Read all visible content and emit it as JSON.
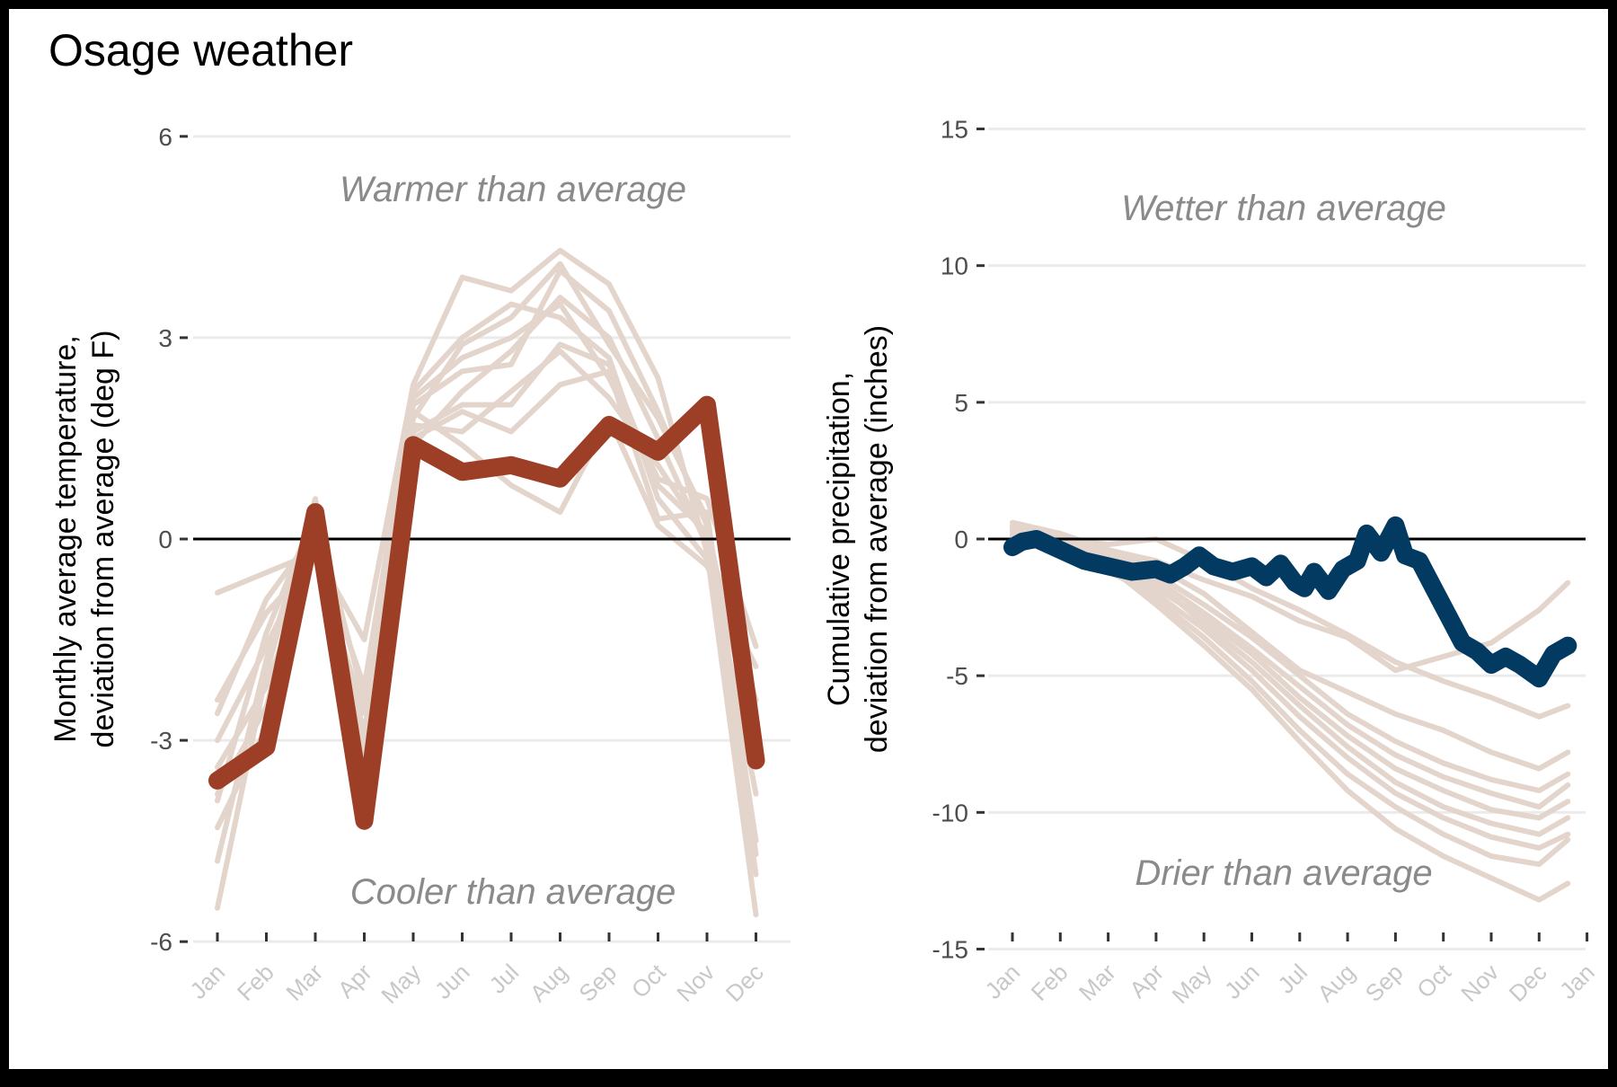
{
  "title": "Osage weather",
  "chart_data": [
    {
      "type": "line",
      "name": "temperature",
      "ylabel_lines": [
        "Monthly average temperature,",
        "deviation from average (deg F)"
      ],
      "ylim": [
        -6.6,
        6.6
      ],
      "yticks": [
        6,
        3,
        0,
        -3,
        -6
      ],
      "ytick_labels": [
        "6",
        "3",
        "0",
        "-3",
        "-6"
      ],
      "categories": [
        "Jan",
        "Feb",
        "Mar",
        "Apr",
        "May",
        "Jun",
        "Jul",
        "Aug",
        "Sep",
        "Oct",
        "Nov",
        "Dec"
      ],
      "grid": true,
      "annotations": {
        "top": "Warmer than average",
        "bottom": "Cooler than average"
      },
      "colors": {
        "highlight": "#9c3f26",
        "background": "#e4d5cc",
        "zero_line": "#000000",
        "grid": "#ebebeb"
      },
      "highlight_series": [
        -3.6,
        -3.1,
        0.4,
        -4.2,
        1.4,
        1.0,
        1.1,
        0.9,
        1.7,
        1.3,
        2.0,
        -3.3
      ],
      "background_series": [
        [
          -0.8,
          -0.5,
          -0.2,
          -1.5,
          2.3,
          3.9,
          3.7,
          4.3,
          3.8,
          2.4,
          -0.2,
          -5.6
        ],
        [
          -4.8,
          -1.8,
          0.5,
          -3.5,
          1.8,
          2.9,
          3.3,
          4.1,
          2.9,
          1.8,
          0.3,
          -4.5
        ],
        [
          -2.4,
          -1.1,
          -0.3,
          -2.6,
          1.4,
          2.2,
          2.8,
          3.6,
          3.0,
          1.5,
          -0.1,
          -3.8
        ],
        [
          -3.8,
          -2.5,
          0.2,
          -3.0,
          2.0,
          2.5,
          2.6,
          4.0,
          3.4,
          1.9,
          0.2,
          -3.2
        ],
        [
          -5.5,
          -2.0,
          0.6,
          -4.0,
          1.6,
          2.0,
          2.0,
          2.9,
          2.6,
          0.8,
          0.1,
          -5.0
        ],
        [
          -3.0,
          -1.6,
          -0.1,
          -2.2,
          2.2,
          3.0,
          3.5,
          3.3,
          2.7,
          0.6,
          -0.3,
          -2.8
        ],
        [
          -4.3,
          -2.8,
          0.3,
          -3.8,
          1.5,
          1.9,
          1.6,
          2.3,
          2.5,
          0.3,
          0.4,
          -4.7
        ],
        [
          -2.6,
          -0.9,
          0.1,
          -2.9,
          1.9,
          1.4,
          0.8,
          0.4,
          1.8,
          0.2,
          -0.4,
          -1.9
        ],
        [
          -3.4,
          -2.2,
          -0.2,
          -3.2,
          1.7,
          1.6,
          2.2,
          2.8,
          2.1,
          1.1,
          0.0,
          -2.4
        ],
        [
          -3.9,
          -1.4,
          0.4,
          -2.4,
          2.1,
          2.7,
          3.0,
          3.5,
          2.4,
          0.9,
          0.6,
          -1.6
        ]
      ]
    },
    {
      "type": "line",
      "name": "precipitation",
      "ylabel_lines": [
        "Cumulative precipitation,",
        "deviation from average (inches)"
      ],
      "ylim": [
        -16.2,
        16.2
      ],
      "yticks": [
        15,
        10,
        5,
        0,
        -5,
        -10,
        -15
      ],
      "ytick_labels": [
        "15",
        "10",
        "5",
        "0",
        "-5",
        "-10",
        "-15"
      ],
      "categories": [
        "Jan",
        "Feb",
        "Mar",
        "Apr",
        "May",
        "Jun",
        "Jul",
        "Aug",
        "Sep",
        "Oct",
        "Nov",
        "Dec",
        "Jan"
      ],
      "grid": true,
      "annotations": {
        "top": "Wetter than average",
        "bottom": "Drier than average"
      },
      "colors": {
        "highlight": "#033a62",
        "background": "#e4d5cc",
        "zero_line": "#000000",
        "grid": "#ebebeb"
      },
      "highlight_points": [
        [
          0,
          -0.3
        ],
        [
          0.2,
          -0.1
        ],
        [
          0.5,
          0.0
        ],
        [
          1.0,
          -0.4
        ],
        [
          1.5,
          -0.8
        ],
        [
          2.0,
          -1.0
        ],
        [
          2.5,
          -1.2
        ],
        [
          3.0,
          -1.1
        ],
        [
          3.3,
          -1.3
        ],
        [
          3.6,
          -1.0
        ],
        [
          3.9,
          -0.6
        ],
        [
          4.2,
          -1.0
        ],
        [
          4.6,
          -1.2
        ],
        [
          5.0,
          -1.0
        ],
        [
          5.3,
          -1.4
        ],
        [
          5.6,
          -0.9
        ],
        [
          5.9,
          -1.6
        ],
        [
          6.1,
          -1.8
        ],
        [
          6.3,
          -1.2
        ],
        [
          6.6,
          -1.9
        ],
        [
          6.9,
          -1.1
        ],
        [
          7.2,
          -0.8
        ],
        [
          7.4,
          0.2
        ],
        [
          7.7,
          -0.5
        ],
        [
          8.0,
          0.5
        ],
        [
          8.2,
          -0.6
        ],
        [
          8.5,
          -0.8
        ],
        [
          8.8,
          -1.8
        ],
        [
          9.1,
          -2.8
        ],
        [
          9.4,
          -3.8
        ],
        [
          9.7,
          -4.1
        ],
        [
          10.0,
          -4.6
        ],
        [
          10.3,
          -4.3
        ],
        [
          10.6,
          -4.6
        ],
        [
          11.0,
          -5.1
        ],
        [
          11.3,
          -4.2
        ],
        [
          11.6,
          -3.9
        ]
      ],
      "background_series": [
        [
          [
            0,
            0.6
          ],
          [
            1.0,
            0.2
          ],
          [
            2.0,
            -0.4
          ],
          [
            3.0,
            -0.8
          ],
          [
            4.0,
            -1.5
          ],
          [
            5.0,
            -2.1
          ],
          [
            6.0,
            -3.0
          ],
          [
            7.0,
            -3.6
          ],
          [
            8.0,
            -4.8
          ],
          [
            9.0,
            -4.3
          ],
          [
            10.0,
            -3.8
          ],
          [
            11.0,
            -2.6
          ],
          [
            11.6,
            -1.6
          ]
        ],
        [
          [
            0,
            0.3
          ],
          [
            1.0,
            0.0
          ],
          [
            2.0,
            -0.2
          ],
          [
            3.0,
            0.0
          ],
          [
            4.0,
            -0.8
          ],
          [
            5.0,
            -1.8
          ],
          [
            6.0,
            -2.6
          ],
          [
            7.0,
            -3.5
          ],
          [
            8.0,
            -4.5
          ],
          [
            9.0,
            -5.2
          ],
          [
            10.0,
            -5.8
          ],
          [
            11.0,
            -6.5
          ],
          [
            11.6,
            -6.1
          ]
        ],
        [
          [
            0,
            0.5
          ],
          [
            1.0,
            0.1
          ],
          [
            2.0,
            -0.5
          ],
          [
            3.0,
            -1.0
          ],
          [
            4.0,
            -2.0
          ],
          [
            5.0,
            -3.4
          ],
          [
            6.0,
            -4.8
          ],
          [
            7.0,
            -5.6
          ],
          [
            8.0,
            -6.4
          ],
          [
            9.0,
            -7.0
          ],
          [
            10.0,
            -7.8
          ],
          [
            11.0,
            -8.4
          ],
          [
            11.6,
            -7.8
          ]
        ],
        [
          [
            0,
            0.2
          ],
          [
            1.0,
            -0.2
          ],
          [
            2.0,
            -0.6
          ],
          [
            3.0,
            -1.3
          ],
          [
            4.0,
            -2.4
          ],
          [
            5.0,
            -3.6
          ],
          [
            6.0,
            -5.0
          ],
          [
            7.0,
            -6.4
          ],
          [
            8.0,
            -7.4
          ],
          [
            9.0,
            -8.2
          ],
          [
            10.0,
            -8.8
          ],
          [
            11.0,
            -9.2
          ],
          [
            11.6,
            -8.6
          ]
        ],
        [
          [
            0,
            0.4
          ],
          [
            1.0,
            0.0
          ],
          [
            2.0,
            -0.8
          ],
          [
            3.0,
            -1.5
          ],
          [
            4.0,
            -2.7
          ],
          [
            5.0,
            -4.0
          ],
          [
            6.0,
            -5.4
          ],
          [
            7.0,
            -6.8
          ],
          [
            8.0,
            -7.9
          ],
          [
            9.0,
            -8.7
          ],
          [
            10.0,
            -9.3
          ],
          [
            11.0,
            -9.8
          ],
          [
            11.6,
            -9.0
          ]
        ],
        [
          [
            0,
            0.1
          ],
          [
            1.0,
            -0.4
          ],
          [
            2.0,
            -1.0
          ],
          [
            3.0,
            -1.8
          ],
          [
            4.0,
            -2.9
          ],
          [
            5.0,
            -4.2
          ],
          [
            6.0,
            -5.8
          ],
          [
            7.0,
            -7.2
          ],
          [
            8.0,
            -8.4
          ],
          [
            9.0,
            -9.2
          ],
          [
            10.0,
            -9.9
          ],
          [
            11.0,
            -10.2
          ],
          [
            11.6,
            -9.6
          ]
        ],
        [
          [
            0,
            0.3
          ],
          [
            1.0,
            -0.2
          ],
          [
            2.0,
            -0.9
          ],
          [
            3.0,
            -1.6
          ],
          [
            4.0,
            -3.1
          ],
          [
            5.0,
            -4.5
          ],
          [
            6.0,
            -6.1
          ],
          [
            7.0,
            -7.6
          ],
          [
            8.0,
            -8.9
          ],
          [
            9.0,
            -9.8
          ],
          [
            10.0,
            -10.4
          ],
          [
            11.0,
            -10.8
          ],
          [
            11.6,
            -10.2
          ]
        ],
        [
          [
            0,
            0.0
          ],
          [
            1.0,
            -0.5
          ],
          [
            2.0,
            -1.2
          ],
          [
            3.0,
            -2.0
          ],
          [
            4.0,
            -3.3
          ],
          [
            5.0,
            -4.8
          ],
          [
            6.0,
            -6.5
          ],
          [
            7.0,
            -8.0
          ],
          [
            8.0,
            -9.3
          ],
          [
            9.0,
            -10.2
          ],
          [
            10.0,
            -10.9
          ],
          [
            11.0,
            -11.3
          ],
          [
            11.6,
            -10.8
          ]
        ],
        [
          [
            0,
            0.2
          ],
          [
            1.0,
            -0.3
          ],
          [
            2.0,
            -1.1
          ],
          [
            3.0,
            -2.2
          ],
          [
            4.0,
            -3.6
          ],
          [
            5.0,
            -5.2
          ],
          [
            6.0,
            -7.0
          ],
          [
            7.0,
            -8.6
          ],
          [
            8.0,
            -9.8
          ],
          [
            9.0,
            -10.8
          ],
          [
            10.0,
            -11.6
          ],
          [
            11.0,
            -11.9
          ],
          [
            11.6,
            -11.0
          ]
        ],
        [
          [
            0,
            0.4
          ],
          [
            1.0,
            -0.1
          ],
          [
            2.0,
            -1.0
          ],
          [
            3.0,
            -2.4
          ],
          [
            4.0,
            -3.9
          ],
          [
            5.0,
            -5.5
          ],
          [
            6.0,
            -7.4
          ],
          [
            7.0,
            -9.2
          ],
          [
            8.0,
            -10.6
          ],
          [
            9.0,
            -11.6
          ],
          [
            10.0,
            -12.4
          ],
          [
            11.0,
            -13.2
          ],
          [
            11.6,
            -12.6
          ]
        ]
      ]
    }
  ]
}
